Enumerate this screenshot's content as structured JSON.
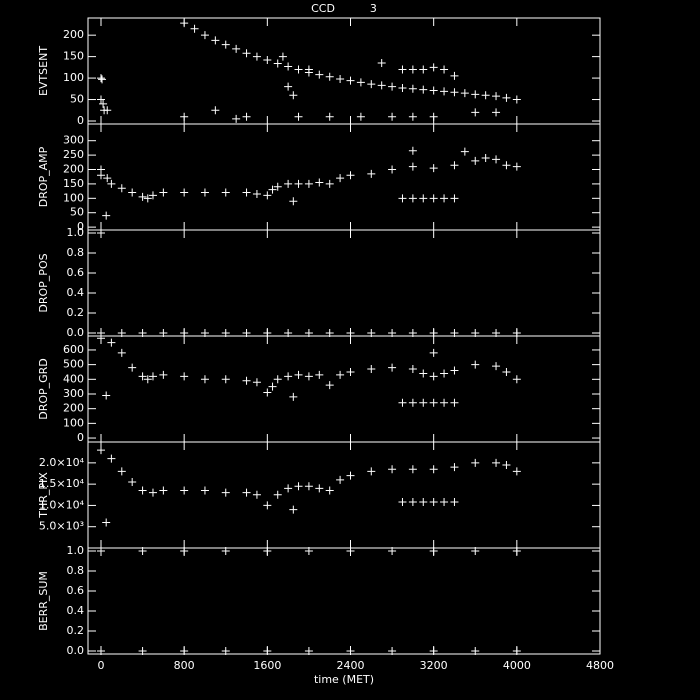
{
  "chart_data": [
    {
      "type": "scatter",
      "title": "CCD          3",
      "ylabel": "EVTSENT",
      "xlim": [
        -125,
        4800
      ],
      "xticks": [
        0,
        800,
        1600,
        2400,
        3200,
        4000,
        4800
      ],
      "ylim": [
        -7,
        240
      ],
      "yticks": [
        0,
        50,
        100,
        150,
        200
      ],
      "x": [
        800,
        900,
        1000,
        1100,
        1200,
        1300,
        1400,
        1500,
        1600,
        1700,
        1800,
        1900,
        2000,
        2100,
        2200,
        2300,
        2400,
        2500,
        2600,
        2700,
        2800,
        2900,
        3000,
        3100,
        3200,
        3300,
        3400,
        3500,
        3600,
        3700,
        3800,
        3900,
        4000,
        0,
        10,
        0,
        20,
        30,
        60,
        800,
        1100,
        1300,
        1400,
        1750,
        1800,
        1850,
        2000,
        2700,
        2900,
        3000,
        3100,
        3200,
        3300,
        3400,
        1900,
        2200,
        2500,
        2800,
        3000,
        3200,
        3600,
        3800
      ],
      "values": [
        228,
        215,
        200,
        188,
        178,
        168,
        158,
        150,
        142,
        134,
        127,
        120,
        113,
        108,
        103,
        98,
        94,
        90,
        86,
        83,
        80,
        77,
        75,
        73,
        71,
        69,
        67,
        65,
        62,
        60,
        58,
        54,
        50,
        100,
        97,
        50,
        40,
        25,
        25,
        10,
        25,
        5,
        10,
        150,
        80,
        60,
        120,
        135,
        120,
        120,
        120,
        125,
        120,
        105,
        10,
        10,
        10,
        10,
        10,
        10,
        20,
        20
      ]
    },
    {
      "type": "scatter",
      "ylabel": "DROP_AMP",
      "xlim": [
        -125,
        4800
      ],
      "xticks": [
        0,
        800,
        1600,
        2400,
        3200,
        4000,
        4800
      ],
      "ylim": [
        -10,
        358
      ],
      "yticks": [
        0,
        50,
        100,
        150,
        200,
        250,
        300
      ],
      "x": [
        0,
        0,
        50,
        60,
        100,
        200,
        300,
        400,
        450,
        500,
        600,
        800,
        1000,
        1200,
        1400,
        1500,
        1600,
        1650,
        1700,
        1800,
        1850,
        1900,
        2000,
        2100,
        2200,
        2300,
        2400,
        2600,
        2800,
        3000,
        3200,
        3400,
        3600,
        3700,
        3800,
        3900,
        4000,
        2900,
        3000,
        3100,
        3200,
        3300,
        3400,
        3000,
        3500
      ],
      "values": [
        180,
        200,
        40,
        170,
        150,
        135,
        120,
        105,
        100,
        110,
        120,
        120,
        120,
        120,
        120,
        115,
        110,
        130,
        140,
        150,
        90,
        150,
        150,
        155,
        150,
        170,
        180,
        185,
        200,
        210,
        205,
        215,
        230,
        240,
        235,
        215,
        210,
        100,
        100,
        100,
        100,
        100,
        100,
        265,
        262
      ]
    },
    {
      "type": "scatter",
      "ylabel": "DROP_POS",
      "xlim": [
        -125,
        4800
      ],
      "xticks": [
        0,
        800,
        1600,
        2400,
        3200,
        4000,
        4800
      ],
      "ylim": [
        -0.03,
        1.03
      ],
      "yticks": [
        {
          "value": 0,
          "label": "0.0"
        },
        0.2,
        0.4,
        0.6,
        0.8,
        {
          "value": 1,
          "label": "1.0"
        }
      ],
      "x": [
        0,
        200,
        400,
        600,
        800,
        1000,
        1200,
        1400,
        1600,
        1800,
        2000,
        2200,
        2400,
        2600,
        2800,
        3000,
        3200,
        3400,
        3600,
        3800,
        4000,
        0
      ],
      "values": [
        0,
        0,
        0,
        0,
        0,
        0,
        0,
        0,
        0,
        0,
        0,
        0,
        0,
        0,
        0,
        0,
        0,
        0,
        0,
        0,
        0,
        1
      ]
    },
    {
      "type": "scatter",
      "ylabel": "DROP_GRD",
      "xlim": [
        -125,
        4800
      ],
      "xticks": [
        0,
        800,
        1600,
        2400,
        3200,
        4000,
        4800
      ],
      "ylim": [
        -27,
        695
      ],
      "yticks": [
        0,
        100,
        200,
        300,
        400,
        500,
        600
      ],
      "x": [
        0,
        50,
        100,
        200,
        300,
        400,
        450,
        500,
        600,
        800,
        1000,
        1200,
        1400,
        1500,
        1600,
        1650,
        1700,
        1800,
        1850,
        1900,
        2000,
        2100,
        2200,
        2300,
        2400,
        2600,
        2800,
        3000,
        3100,
        3200,
        3300,
        3400,
        3600,
        3800,
        3900,
        4000,
        2900,
        3000,
        3100,
        3200,
        3300,
        3400,
        3200
      ],
      "values": [
        680,
        290,
        650,
        580,
        480,
        420,
        400,
        420,
        430,
        420,
        400,
        400,
        390,
        380,
        310,
        350,
        400,
        420,
        280,
        430,
        420,
        430,
        360,
        430,
        450,
        470,
        480,
        470,
        440,
        420,
        440,
        460,
        500,
        490,
        450,
        400,
        240,
        240,
        240,
        240,
        240,
        240,
        580
      ]
    },
    {
      "type": "scatter",
      "ylabel": "THR_PIX",
      "xlim": [
        -125,
        4800
      ],
      "xticks": [
        0,
        800,
        1600,
        2400,
        3200,
        4000,
        4800
      ],
      "ylim": [
        0,
        24900
      ],
      "yticks": [
        {
          "value": 5000,
          "label": "5.0×10³"
        },
        {
          "value": 10000,
          "label": "1.0×10⁴"
        },
        {
          "value": 15000,
          "label": "1.5×10⁴"
        },
        {
          "value": 20000,
          "label": "2.0×10⁴"
        }
      ],
      "x": [
        0,
        50,
        100,
        200,
        300,
        400,
        500,
        600,
        800,
        1000,
        1200,
        1400,
        1500,
        1600,
        1700,
        1800,
        1850,
        1900,
        2000,
        2100,
        2200,
        2300,
        2400,
        2600,
        2800,
        3000,
        3200,
        3400,
        3600,
        3800,
        3900,
        4000,
        2900,
        3000,
        3100,
        3200,
        3300,
        3400
      ],
      "values": [
        23000,
        6000,
        21000,
        18000,
        15500,
        13500,
        13000,
        13500,
        13500,
        13500,
        13000,
        13000,
        12500,
        10000,
        12500,
        14000,
        9000,
        14500,
        14500,
        14000,
        13500,
        16000,
        17000,
        18000,
        18500,
        18500,
        18500,
        19000,
        20000,
        20000,
        19500,
        18000,
        10800,
        10800,
        10800,
        10800,
        10800,
        10800
      ]
    },
    {
      "type": "scatter",
      "ylabel": "BERR_SUM",
      "xlabel": "time (MET)",
      "xlim": [
        -125,
        4800
      ],
      "xticks": [
        0,
        800,
        1600,
        2400,
        3200,
        4000,
        4800
      ],
      "ylim": [
        -0.03,
        1.03
      ],
      "yticks": [
        {
          "value": 0,
          "label": "0.0"
        },
        0.2,
        0.4,
        0.6,
        0.8,
        {
          "value": 1,
          "label": "1.0"
        }
      ],
      "x": [
        0,
        400,
        800,
        1200,
        1600,
        2000,
        2400,
        2800,
        3200,
        3600,
        4000,
        0,
        400,
        800,
        1200,
        1600,
        2000,
        2400,
        2800,
        3200,
        3600,
        4000
      ],
      "values": [
        0,
        0,
        0,
        0,
        0,
        0,
        0,
        0,
        0,
        0,
        0,
        1,
        1,
        1,
        1,
        1,
        1,
        1,
        1,
        1,
        1,
        1
      ]
    }
  ]
}
